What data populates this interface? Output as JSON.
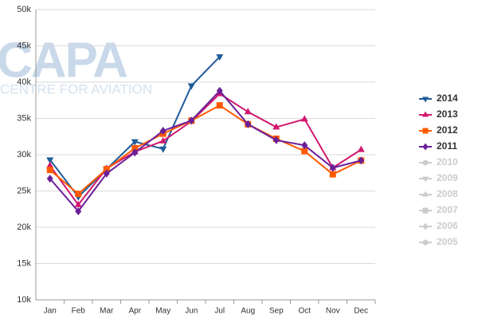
{
  "chart_data": {
    "type": "line",
    "watermark": {
      "title": "CAPA",
      "subtitle": "CENTRE FOR AVIATION"
    },
    "categories": [
      "Jan",
      "Feb",
      "Mar",
      "Apr",
      "May",
      "Jun",
      "Jul",
      "Aug",
      "Sep",
      "Oct",
      "Nov",
      "Dec"
    ],
    "ylim": [
      10000,
      50000
    ],
    "yticks": [
      {
        "value": 10000,
        "label": "10k"
      },
      {
        "value": 15000,
        "label": "15k"
      },
      {
        "value": 20000,
        "label": "20k"
      },
      {
        "value": 25000,
        "label": "25k"
      },
      {
        "value": 30000,
        "label": "30k"
      },
      {
        "value": 35000,
        "label": "35k"
      },
      {
        "value": 40000,
        "label": "40k"
      },
      {
        "value": 45000,
        "label": "45k"
      },
      {
        "value": 50000,
        "label": "50k"
      }
    ],
    "grid": true,
    "legend": "right",
    "series": [
      {
        "name": "2014",
        "color": "#1f5b99",
        "marker": "triangle-down",
        "values": [
          29300,
          24200,
          28000,
          31800,
          30800,
          39500,
          43500,
          null,
          null,
          null,
          null,
          null
        ]
      },
      {
        "name": "2013",
        "color": "#d1176e",
        "marker": "triangle-up",
        "values": [
          28500,
          23100,
          28100,
          30400,
          31900,
          34600,
          38400,
          35900,
          33800,
          34900,
          28200,
          30700
        ]
      },
      {
        "name": "2012",
        "color": "#ff5a00",
        "marker": "square",
        "values": [
          27900,
          24600,
          28000,
          30900,
          32900,
          34700,
          36800,
          34200,
          32200,
          30500,
          27300,
          29200
        ]
      },
      {
        "name": "2011",
        "color": "#6b1f99",
        "marker": "diamond",
        "values": [
          26700,
          22200,
          27400,
          30300,
          33300,
          34700,
          38800,
          34200,
          32000,
          31300,
          28200,
          29200
        ]
      },
      {
        "name": "2010",
        "color": "#cccccc",
        "marker": "circle",
        "values": [
          null,
          null,
          null,
          null,
          null,
          null,
          null,
          null,
          null,
          null,
          null,
          null
        ]
      },
      {
        "name": "2009",
        "color": "#cccccc",
        "marker": "triangle-down",
        "values": [
          null,
          null,
          null,
          null,
          null,
          null,
          null,
          null,
          null,
          null,
          null,
          null
        ]
      },
      {
        "name": "2008",
        "color": "#cccccc",
        "marker": "triangle-up",
        "values": [
          null,
          null,
          null,
          null,
          null,
          null,
          null,
          null,
          null,
          null,
          null,
          null
        ]
      },
      {
        "name": "2007",
        "color": "#cccccc",
        "marker": "square",
        "values": [
          null,
          null,
          null,
          null,
          null,
          null,
          null,
          null,
          null,
          null,
          null,
          null
        ]
      },
      {
        "name": "2006",
        "color": "#cccccc",
        "marker": "diamond",
        "values": [
          null,
          null,
          null,
          null,
          null,
          null,
          null,
          null,
          null,
          null,
          null,
          null
        ]
      },
      {
        "name": "2005",
        "color": "#cccccc",
        "marker": "circle",
        "values": [
          null,
          null,
          null,
          null,
          null,
          null,
          null,
          null,
          null,
          null,
          null,
          null
        ]
      }
    ]
  }
}
